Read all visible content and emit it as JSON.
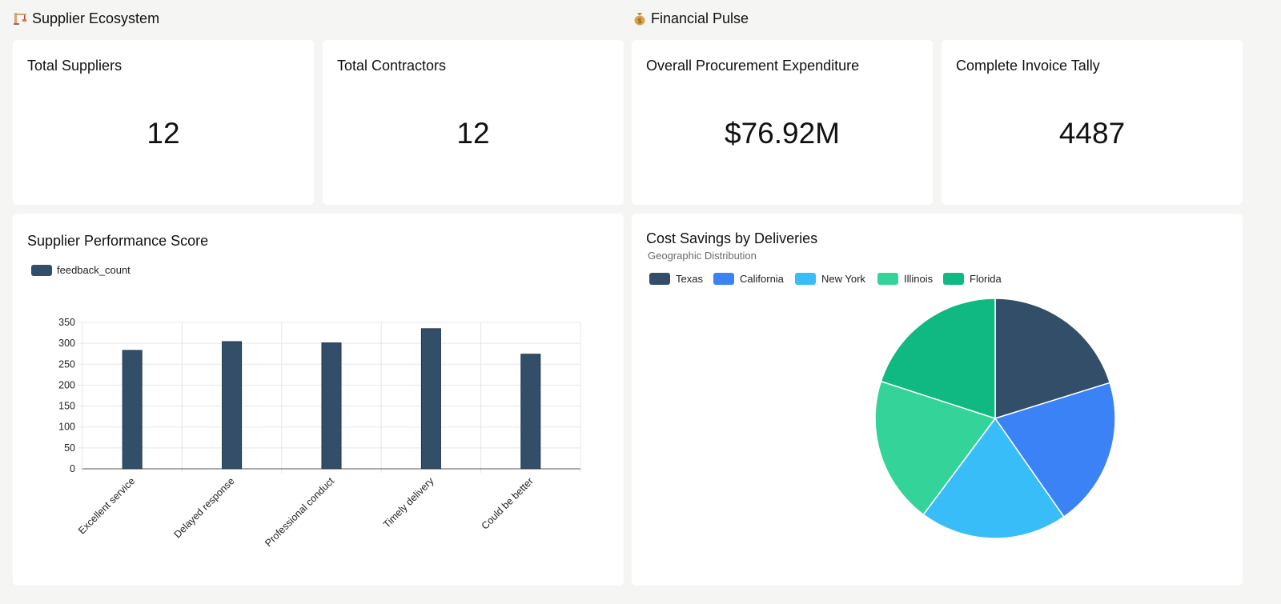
{
  "sections": {
    "supplier": {
      "title": "Supplier Ecosystem",
      "icon": "construction-icon"
    },
    "financial": {
      "title": "Financial Pulse",
      "icon": "money-bag-icon"
    }
  },
  "kpis": [
    {
      "title": "Total Suppliers",
      "value": "12"
    },
    {
      "title": "Total Contractors",
      "value": "12"
    },
    {
      "title": "Overall Procurement Expenditure",
      "value": "$76.92M"
    },
    {
      "title": "Complete Invoice Tally",
      "value": "4487"
    }
  ],
  "bar_card": {
    "title": "Supplier Performance Score"
  },
  "pie_card": {
    "title": "Cost Savings by Deliveries",
    "subtitle": "Geographic Distribution"
  },
  "colors": {
    "bar": "#334e68",
    "grid": "#e5e7eb",
    "texas": "#334e68",
    "california": "#3b82f6",
    "new_york": "#38bdf8",
    "illinois": "#34d399",
    "florida": "#10b981"
  },
  "chart_data": [
    {
      "type": "bar",
      "title": "Supplier Performance Score",
      "categories": [
        "Excellent service",
        "Delayed response",
        "Professional conduct",
        "Timely delivery",
        "Could be better"
      ],
      "series": [
        {
          "name": "feedback_count",
          "values": [
            283,
            304,
            301,
            335,
            274
          ]
        }
      ],
      "yticks": [
        "0",
        "50",
        "100",
        "150",
        "200",
        "250",
        "300",
        "350"
      ],
      "ylim": [
        0,
        350
      ],
      "grid": true,
      "legend": "top-left"
    },
    {
      "type": "pie",
      "title": "Cost Savings by Deliveries",
      "subtitle": "Geographic Distribution",
      "labels": [
        "Texas",
        "California",
        "New York",
        "Illinois",
        "Florida"
      ],
      "values": [
        20.2,
        20.1,
        19.9,
        19.8,
        20.0
      ],
      "colors": [
        "#334e68",
        "#3b82f6",
        "#38bdf8",
        "#34d399",
        "#10b981"
      ],
      "legend": "top-left"
    }
  ]
}
